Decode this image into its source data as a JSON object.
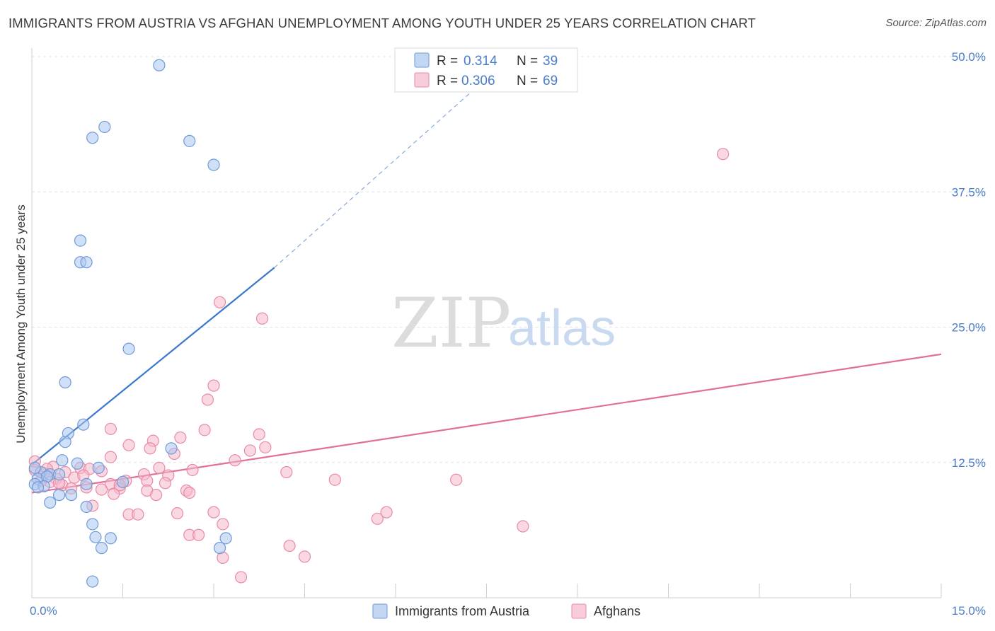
{
  "title": "IMMIGRANTS FROM AUSTRIA VS AFGHAN UNEMPLOYMENT AMONG YOUTH UNDER 25 YEARS CORRELATION CHART",
  "source": "Source: ZipAtlas.com",
  "watermark": {
    "zip": "ZIP",
    "atlas": "atlas"
  },
  "colors": {
    "blue_fill": "#a9c6ee",
    "blue_stroke": "#6f9ad8",
    "blue_line": "#3a78d0",
    "pink_fill": "#f5b8ca",
    "pink_stroke": "#e88aa8",
    "pink_line": "#e0709a",
    "grid": "#dde3ea",
    "accent_text": "#4a7cc7"
  },
  "legend": {
    "rows": [
      {
        "r_label": "R =",
        "r_value": "0.314",
        "n_label": "N =",
        "n_value": "39",
        "series": "blue"
      },
      {
        "r_label": "R =",
        "r_value": "0.306",
        "n_label": "N =",
        "n_value": "69",
        "series": "pink"
      }
    ]
  },
  "chart_data": {
    "type": "scatter",
    "title": "IMMIGRANTS FROM AUSTRIA VS AFGHAN UNEMPLOYMENT AMONG YOUTH UNDER 25 YEARS CORRELATION CHART",
    "xlabel": "",
    "ylabel": "Unemployment Among Youth under 25 years",
    "xlim": [
      0,
      15
    ],
    "ylim": [
      0,
      50
    ],
    "x_tick_labels": [
      {
        "value": 0,
        "label": "0.0%"
      },
      {
        "value": 15,
        "label": "15.0%"
      }
    ],
    "y_tick_labels": [
      {
        "value": 12.5,
        "label": "12.5%"
      },
      {
        "value": 25,
        "label": "25.0%"
      },
      {
        "value": 37.5,
        "label": "37.5%"
      },
      {
        "value": 50,
        "label": "50.0%"
      }
    ],
    "grid": true,
    "legend_position": "top-center",
    "series": [
      {
        "name": "Immigrants from Austria",
        "color": "#a9c6ee",
        "points": [
          [
            2.1,
            49.2
          ],
          [
            1.2,
            43.5
          ],
          [
            1.0,
            42.5
          ],
          [
            2.6,
            42.2
          ],
          [
            3.0,
            40.0
          ],
          [
            0.8,
            33.0
          ],
          [
            0.8,
            31.0
          ],
          [
            0.9,
            31.0
          ],
          [
            1.6,
            23.0
          ],
          [
            0.55,
            19.9
          ],
          [
            0.85,
            16.0
          ],
          [
            0.6,
            15.2
          ],
          [
            0.55,
            14.4
          ],
          [
            2.3,
            13.8
          ],
          [
            0.5,
            12.7
          ],
          [
            0.75,
            12.4
          ],
          [
            1.1,
            12.0
          ],
          [
            0.15,
            11.6
          ],
          [
            0.3,
            11.4
          ],
          [
            0.45,
            11.4
          ],
          [
            0.1,
            11.0
          ],
          [
            0.25,
            11.2
          ],
          [
            1.5,
            10.7
          ],
          [
            0.9,
            10.5
          ],
          [
            0.05,
            10.5
          ],
          [
            0.2,
            10.3
          ],
          [
            0.1,
            10.2
          ],
          [
            0.65,
            9.5
          ],
          [
            0.45,
            9.5
          ],
          [
            0.3,
            8.8
          ],
          [
            0.9,
            8.4
          ],
          [
            1.0,
            6.8
          ],
          [
            1.05,
            5.6
          ],
          [
            1.3,
            5.5
          ],
          [
            3.2,
            5.5
          ],
          [
            1.15,
            4.6
          ],
          [
            3.1,
            4.6
          ],
          [
            1.0,
            1.5
          ],
          [
            0.05,
            12.0
          ]
        ]
      },
      {
        "name": "Afghans",
        "color": "#f5b8ca",
        "points": [
          [
            11.4,
            41.0
          ],
          [
            3.1,
            27.3
          ],
          [
            3.8,
            25.8
          ],
          [
            3.0,
            19.6
          ],
          [
            2.9,
            18.3
          ],
          [
            1.3,
            15.6
          ],
          [
            2.85,
            15.5
          ],
          [
            3.75,
            15.1
          ],
          [
            2.45,
            14.8
          ],
          [
            2.0,
            14.5
          ],
          [
            1.6,
            14.1
          ],
          [
            1.95,
            13.8
          ],
          [
            3.85,
            13.9
          ],
          [
            3.6,
            13.6
          ],
          [
            2.35,
            13.3
          ],
          [
            1.3,
            13.0
          ],
          [
            3.35,
            12.7
          ],
          [
            0.35,
            12.1
          ],
          [
            0.8,
            12.0
          ],
          [
            2.1,
            12.0
          ],
          [
            0.95,
            11.9
          ],
          [
            1.15,
            11.7
          ],
          [
            4.2,
            11.6
          ],
          [
            0.55,
            11.6
          ],
          [
            2.65,
            11.8
          ],
          [
            0.05,
            11.8
          ],
          [
            1.85,
            11.4
          ],
          [
            0.2,
            11.5
          ],
          [
            2.25,
            11.3
          ],
          [
            0.7,
            11.1
          ],
          [
            0.85,
            11.3
          ],
          [
            0.4,
            11.0
          ],
          [
            1.55,
            10.8
          ],
          [
            1.9,
            10.8
          ],
          [
            5.0,
            10.9
          ],
          [
            7.0,
            10.9
          ],
          [
            0.3,
            10.7
          ],
          [
            1.3,
            10.5
          ],
          [
            2.2,
            10.6
          ],
          [
            0.5,
            10.4
          ],
          [
            0.9,
            10.2
          ],
          [
            1.45,
            10.1
          ],
          [
            0.65,
            10.1
          ],
          [
            1.15,
            10.0
          ],
          [
            2.55,
            9.9
          ],
          [
            1.9,
            9.9
          ],
          [
            2.6,
            9.7
          ],
          [
            1.35,
            9.6
          ],
          [
            2.05,
            9.5
          ],
          [
            0.15,
            10.8
          ],
          [
            0.45,
            10.6
          ],
          [
            1.0,
            8.5
          ],
          [
            1.6,
            7.7
          ],
          [
            1.75,
            7.7
          ],
          [
            2.4,
            7.8
          ],
          [
            3.0,
            7.9
          ],
          [
            5.7,
            7.3
          ],
          [
            5.85,
            7.9
          ],
          [
            8.1,
            6.6
          ],
          [
            3.15,
            6.8
          ],
          [
            2.6,
            5.8
          ],
          [
            2.75,
            5.8
          ],
          [
            4.25,
            4.8
          ],
          [
            3.15,
            3.7
          ],
          [
            4.5,
            3.8
          ],
          [
            3.45,
            1.9
          ],
          [
            0.05,
            12.6
          ],
          [
            0.25,
            11.9
          ],
          [
            1.45,
            10.4
          ]
        ]
      }
    ],
    "trendlines": [
      {
        "series": "Immigrants from Austria",
        "x0": 0,
        "y0": 12.3,
        "x1": 4.0,
        "y1": 30.5,
        "dashed_to": [
          7.8,
          49.5
        ]
      },
      {
        "series": "Afghans",
        "x0": 0,
        "y0": 9.7,
        "x1": 15.0,
        "y1": 22.5
      }
    ]
  }
}
